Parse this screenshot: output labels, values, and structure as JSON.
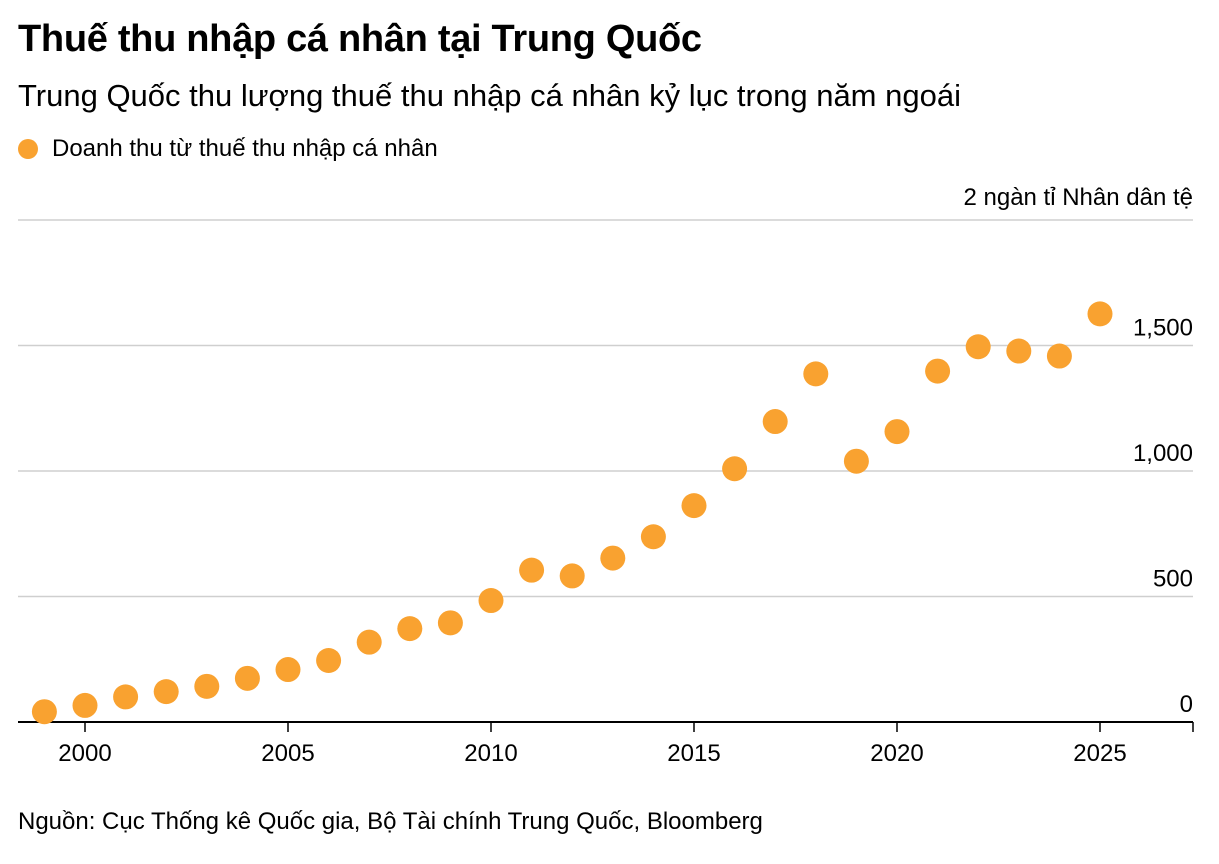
{
  "title": "Thuế thu nhập cá nhân tại Trung Quốc",
  "subtitle": "Trung Quốc thu lượng thuế thu nhập cá nhân kỷ lục trong năm ngoái",
  "legend": {
    "label": "Doanh thu từ thuế thu nhập cá nhân",
    "color": "#f9a230"
  },
  "unit_label": "2 ngàn tỉ Nhân dân tệ",
  "source": "Nguồn: Cục Thống kê Quốc gia, Bộ Tài chính Trung Quốc, Bloomberg",
  "chart_data": {
    "type": "scatter",
    "title": "Thuế thu nhập cá nhân tại Trung Quốc",
    "subtitle": "Trung Quốc thu lượng thuế thu nhập cá nhân kỷ lục trong năm ngoái",
    "xlim": [
      1998.8,
      2027.2
    ],
    "ylim": [
      0,
      2000
    ],
    "x_ticks": [
      2000,
      2005,
      2010,
      2015,
      2020,
      2025
    ],
    "x_tick_labels": [
      "2000",
      "2005",
      "2010",
      "2015",
      "2020",
      "2025"
    ],
    "y_ticks": [
      0,
      500,
      1000,
      1500
    ],
    "y_tick_labels": [
      "0",
      "500",
      "1,000",
      "1,500"
    ],
    "grid": true,
    "legend_position": "top-left",
    "series": [
      {
        "name": "Doanh thu từ thuế thu nhập cá nhân",
        "color": "#f9a230",
        "x": [
          1999,
          2000,
          2001,
          2002,
          2003,
          2004,
          2005,
          2006,
          2007,
          2008,
          2009,
          2010,
          2011,
          2012,
          2013,
          2014,
          2015,
          2016,
          2017,
          2018,
          2019,
          2020,
          2021,
          2022,
          2023,
          2024,
          2025
        ],
        "y": [
          41,
          66,
          100,
          121,
          142,
          174,
          209,
          245,
          318,
          372,
          395,
          484,
          605,
          582,
          653,
          738,
          862,
          1009,
          1197,
          1387,
          1039,
          1157,
          1398,
          1495,
          1478,
          1458,
          1626
        ]
      }
    ]
  }
}
